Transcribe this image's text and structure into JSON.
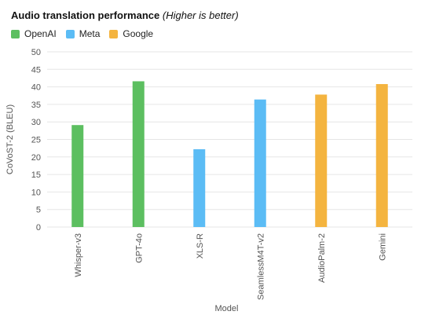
{
  "chart_data": {
    "type": "bar",
    "title": "Audio translation performance",
    "title_note": "(Higher is better)",
    "xlabel": "Model",
    "ylabel": "CoVoST-2 (BLEU)",
    "ylim": [
      0,
      50
    ],
    "yticks": [
      0,
      5,
      10,
      15,
      20,
      25,
      30,
      35,
      40,
      45,
      50
    ],
    "grid": true,
    "legend_position": "top-left",
    "legend": [
      {
        "name": "OpenAI",
        "color": "#5cbf60"
      },
      {
        "name": "Meta",
        "color": "#5bbcf5"
      },
      {
        "name": "Google",
        "color": "#f4b43f"
      }
    ],
    "categories": [
      "Whisper-v3",
      "GPT-4o",
      "XLS-R",
      "SeamlessM4T-v2",
      "AudioPalm-2",
      "Gemini"
    ],
    "values": [
      29.1,
      41.6,
      22.2,
      36.4,
      37.8,
      40.8
    ],
    "groups": [
      "OpenAI",
      "OpenAI",
      "Meta",
      "Meta",
      "Google",
      "Google"
    ]
  }
}
